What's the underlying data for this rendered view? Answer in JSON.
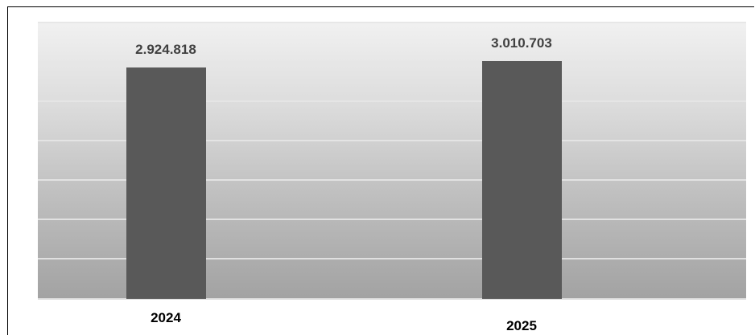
{
  "chart_data": {
    "type": "bar",
    "categories": [
      "2024",
      "2025"
    ],
    "values": [
      2924818,
      3010703
    ],
    "value_labels": [
      "2.924.818",
      "3.010.703"
    ],
    "title": "",
    "xlabel": "",
    "ylabel": "",
    "grid": true,
    "legend": "none",
    "colors": {
      "bar": "#595959",
      "plot_background_top": "#f1f1f1",
      "plot_background_bottom": "#a2a2a2",
      "gridline": "#e6e6e6"
    }
  }
}
